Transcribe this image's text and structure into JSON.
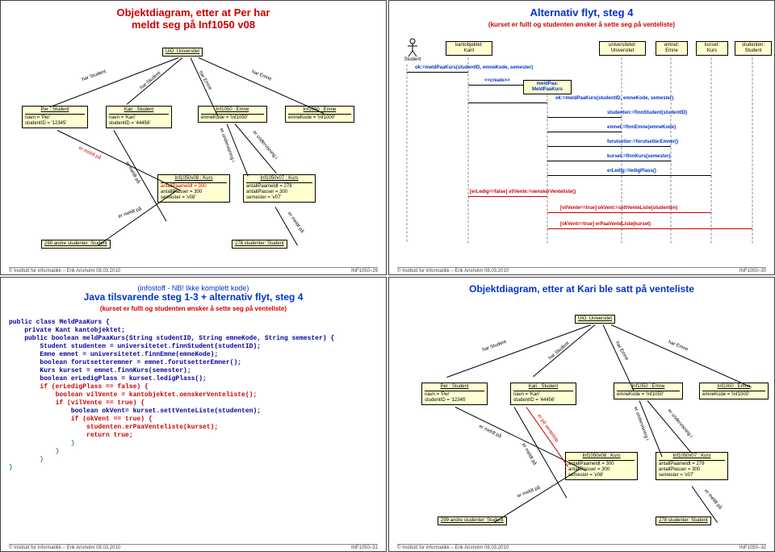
{
  "footer_left": "© Institutt for informatikk – Erik Arisholm 08.03.2010",
  "footer_prefix": "INF1050–",
  "slides": {
    "s1": {
      "title": "Objektdiagram, etter at Per har\nmeldt seg på Inf1050 v08",
      "uio": "UiO: Universitet",
      "per": {
        "h": "Per : Student",
        "a": "navn = 'Per'",
        "b": "studentID = '12345'"
      },
      "kari": {
        "h": "Kari : Student",
        "a": "navn = 'Kari'",
        "b": "studentID = '44456'"
      },
      "e1050": {
        "h": "Inf1050 : Emne",
        "a": "emneKode = 'Inf1050'"
      },
      "e1000": {
        "h": "Inf1000 : Emne",
        "a": "emneKode = 'Inf1000'"
      },
      "k08": {
        "h": "Inf1050v08 : Kurs",
        "a": "antallPaameldt = 300",
        "b": "antallPlasser = 300",
        "c": "semester = 'v08'"
      },
      "k07": {
        "h": "Inf1050v07 : Kurs",
        "a": "antallPaameldt = 278",
        "b": "antallPlasser = 300",
        "c": "semester = 'v07'"
      },
      "s299": "299 andre studenter: Student",
      "s278": "278 studenter: Student",
      "harStudent": "har Student",
      "harEmne": "har Emne",
      "erUnd": "er undervisning i",
      "erMeldt": "er meldt på",
      "page": "29"
    },
    "s2": {
      "title": "Alternativ flyt, steg 4",
      "sub": "(kurset er fullt og studenten ønsker å sette seg på venteliste)",
      "actor": "Student",
      "heads": {
        "kant": "kantobjektet:\nKant",
        "univ": "universitetet:\nUniversitet",
        "emne": "emnet:\nEmne",
        "kurs": "kurset:\nKurs",
        "stud": "studenten:\nStudent"
      },
      "m1": "ok:=meldPaaKurs(studentID, emneKode, semester)",
      "create": "<<create>>",
      "meldPaa": "meldPaa:\nMeldPaaKurs",
      "m2": "ok:=meldPaaKurs(studentID, emneKode, semester)",
      "m3": "studenten:=finnStudent(studentID)",
      "m4": "emnet:=finnEmne(emneKode)",
      "m5": "forutsetter:=forutsetterEmner()",
      "m6": "kurset:=finnKurs(semester)",
      "m7": "erLedig:=ledigPlass()",
      "g1": "[erLedig==false] vilVente:=oenskerVenteliste()",
      "g2": "[vilVente==true] okVent:=settVenteListe(studenten)",
      "g3": "[okVent==true] erPaaVenteListe(kurset)",
      "page": "30"
    },
    "s3": {
      "pre": "(infostoff - NB! Ikke komplett kode)",
      "title": "Java tilsvarende steg 1-3 + alternativ flyt, steg 4",
      "sub": "(kurset er fullt og studenten ønsker å sette seg på venteliste)",
      "code": [
        [
          "kw-blue",
          "public class MeldPaaKurs {"
        ],
        [
          "kw-blue",
          "    private Kant kantobjektet;"
        ],
        [
          "kw-blue",
          "    public boolean meldPaaKurs(String studentID, String emneKode, String semester) {"
        ],
        [
          "kw-blue",
          "        Student studenten = universitetet.finnStudent(studentID);"
        ],
        [
          "kw-blue",
          "        Emne emnet = universitetet.finnEmne(emneKode);"
        ],
        [
          "kw-blue",
          "        boolean forutsetteremner = emnet.forutsetterEmner();"
        ],
        [
          "kw-blue",
          "        Kurs kurset = emnet.finnKurs(semester);"
        ],
        [
          "kw-blue",
          "        boolean erLedigPlass = kurset.ledigPlass();"
        ],
        [
          "kw-red",
          "        if (erLedigPlass == false) {"
        ],
        [
          "kw-red",
          "            boolean vilVente = kantobjektet.oenskerVenteliste();"
        ],
        [
          "kw-red",
          "            if (vilVente == true) {"
        ],
        [
          "kw-blue",
          "                boolean okVent= kurset.settVenteListe(studenten);"
        ],
        [
          "kw-red",
          "                if (okVent == true) {"
        ],
        [
          "kw-red",
          "                    studenten.erPaaVenteliste(kurset);"
        ],
        [
          "kw-red",
          "                    return true;"
        ],
        [
          "kw-teal",
          "                }"
        ],
        [
          "kw-teal",
          "            }"
        ],
        [
          "kw-teal",
          "        }"
        ],
        [
          "kw-teal",
          "}"
        ]
      ],
      "page": "31"
    },
    "s4": {
      "title": "Objektdiagram, etter at Kari ble satt på venteliste",
      "uio": "UiO: Universitet",
      "per": {
        "h": "Per : Student",
        "a": "navn = 'Per'",
        "b": "studentID = '12345'"
      },
      "kari": {
        "h": "Kari : Student",
        "a": "navn = 'Kari'",
        "b": "studentID = '44456'"
      },
      "e1050": {
        "h": "Inf1050 : Emne",
        "a": "emneKode = 'Inf1050'"
      },
      "e1000": {
        "h": "Inf1000 : Emne",
        "a": "emneKode = 'Inf1000'"
      },
      "k08": {
        "h": "Inf1050v08 : Kurs",
        "a": "antallPaameldt = 300",
        "b": "antallPlasser = 300",
        "c": "semester = 'v08'"
      },
      "k07": {
        "h": "Inf1050v07 : Kurs",
        "a": "antallPaameldt = 278",
        "b": "antallPlasser = 300",
        "c": "semester = 'v07'"
      },
      "s299": "299 andre studenter: Student",
      "s278": "278 studenter: Student",
      "harStudent": "har Student",
      "harEmne": "har Emne",
      "erUnd": "er undervisning i",
      "erMeldt": "er meldt på",
      "vent": "er på venteliste",
      "page": "32"
    }
  }
}
